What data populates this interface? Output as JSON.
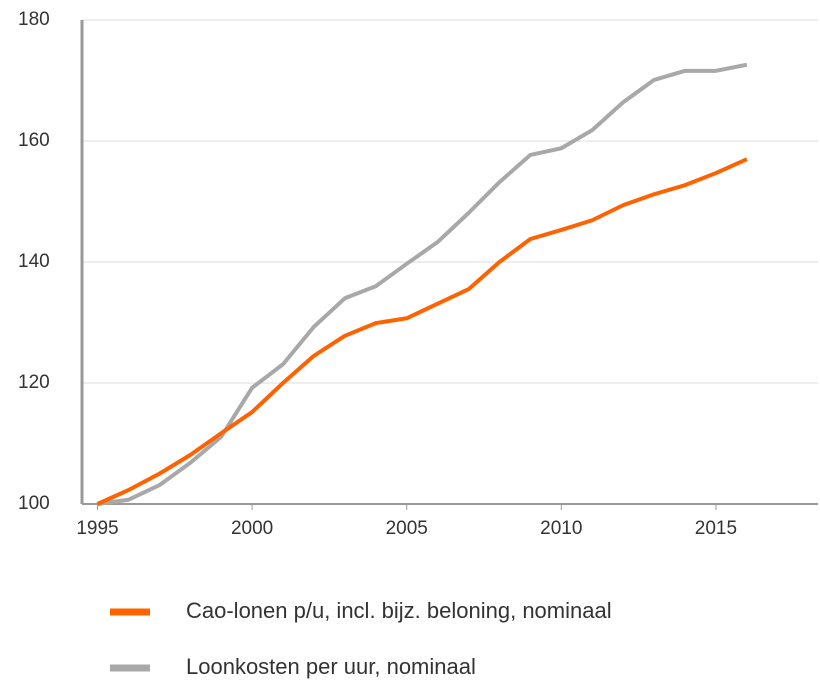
{
  "chart_data": {
    "type": "line",
    "x": [
      1995,
      1996,
      1997,
      1998,
      1999,
      2000,
      2001,
      2002,
      2003,
      2004,
      2005,
      2006,
      2007,
      2008,
      2009,
      2010,
      2011,
      2012,
      2013,
      2014,
      2015,
      2016
    ],
    "series": [
      {
        "name": "Cao-lonen p/u, incl. bijz. beloning, nominaal",
        "color": "#ff6200",
        "values": [
          100,
          102.3,
          105,
          108.1,
          111.7,
          115.2,
          120,
          124.5,
          127.8,
          129.9,
          130.7,
          133.1,
          135.5,
          140,
          143.8,
          145.3,
          146.9,
          149.4,
          151.2,
          152.7,
          154.7,
          157
        ]
      },
      {
        "name": "Loonkosten per uur, nominaal",
        "color": "#a8a8a8",
        "values": [
          100,
          100.7,
          103.1,
          106.8,
          111.1,
          119.2,
          123.1,
          129.3,
          134,
          136,
          139.7,
          143.3,
          148.1,
          153.2,
          157.7,
          158.8,
          161.8,
          166.4,
          170.1,
          171.6,
          171.6,
          172.6
        ]
      }
    ],
    "xlim": [
      1994.5,
      2018.3
    ],
    "xticks": [
      1995,
      2000,
      2005,
      2010,
      2015
    ],
    "ylim": [
      100,
      180
    ],
    "yticks": [
      100,
      120,
      140,
      160,
      180
    ],
    "grid": true,
    "legend": "bottom"
  }
}
